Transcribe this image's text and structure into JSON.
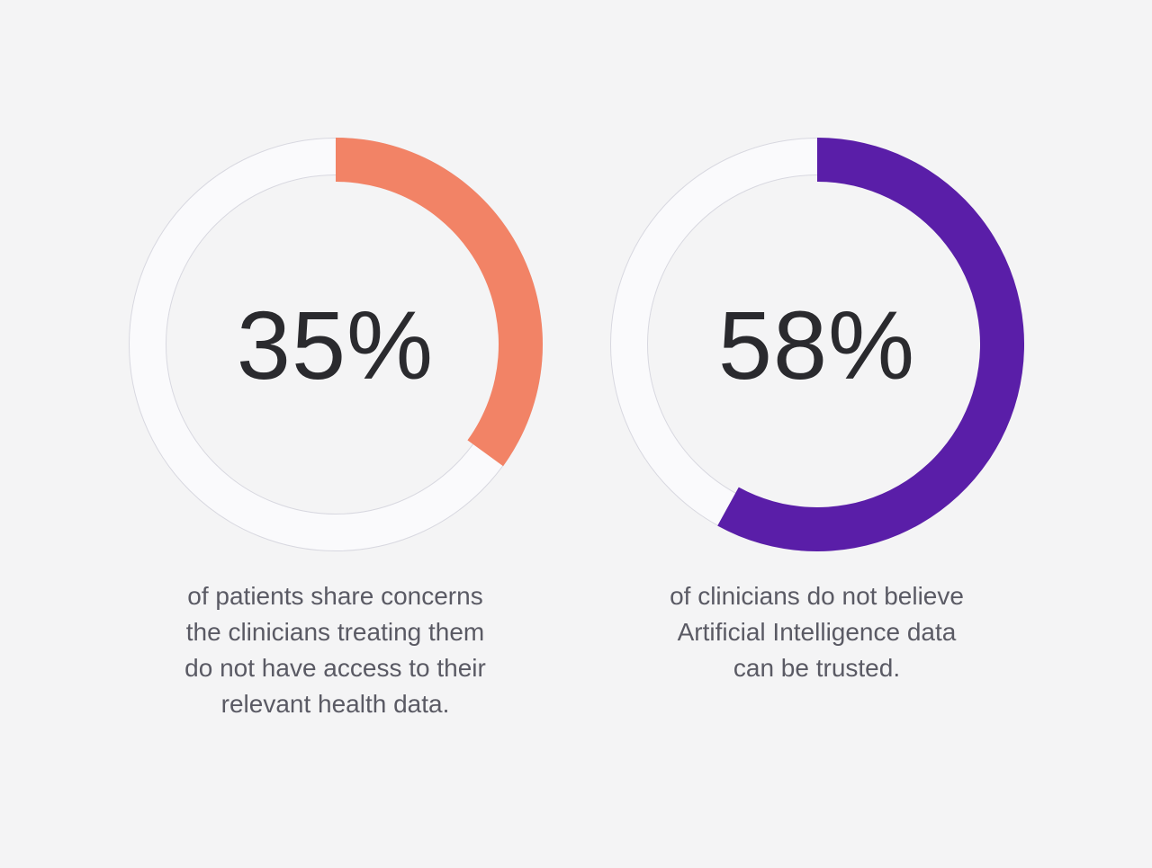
{
  "page": {
    "background_color": "#F4F4F5",
    "percent_text_color": "#2A2A2E",
    "caption_text_color": "#5A5A64",
    "track_fill_color": "#FAFAFC",
    "track_border_color": "#D8D8E0"
  },
  "chart_data": [
    {
      "type": "donut",
      "value_pct": 35,
      "remainder_pct": 65,
      "label": "35%",
      "arc_color": "#F28366",
      "start_position": "top",
      "direction": "clockwise",
      "legend": "none",
      "caption": "of patients share concerns\nthe clinicians treating them\ndo not have access to their\nrelevant health data."
    },
    {
      "type": "donut",
      "value_pct": 58,
      "remainder_pct": 42,
      "label": "58%",
      "arc_color": "#5A1EA8",
      "start_position": "top",
      "direction": "clockwise",
      "legend": "none",
      "caption": "of clinicians do not believe\nArtificial Intelligence data\ncan be trusted."
    }
  ]
}
